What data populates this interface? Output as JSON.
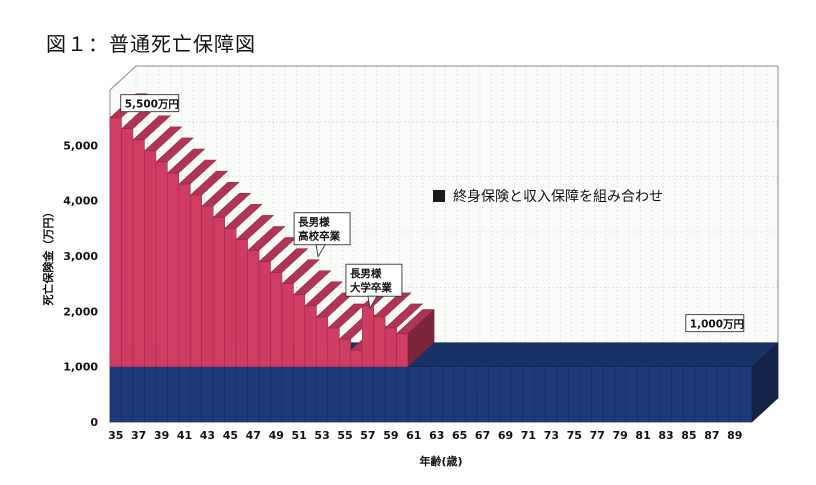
{
  "chart_data": {
    "type": "area",
    "title": "図１：普通死亡保障図",
    "xlabel": "年齢(歳)",
    "ylabel": "死亡保険金（万円）",
    "ylim": [
      0,
      6000
    ],
    "y_ticks": [
      "0",
      "1,000",
      "2,000",
      "3,000",
      "4,000",
      "5,000"
    ],
    "x_ticks": [
      "35",
      "37",
      "39",
      "41",
      "43",
      "45",
      "47",
      "49",
      "51",
      "53",
      "55",
      "57",
      "59",
      "61",
      "63",
      "65",
      "67",
      "69",
      "71",
      "73",
      "75",
      "77",
      "79",
      "81",
      "83",
      "85",
      "87",
      "89"
    ],
    "x": [
      35,
      36,
      37,
      38,
      39,
      40,
      41,
      42,
      43,
      44,
      45,
      46,
      47,
      48,
      49,
      50,
      51,
      52,
      53,
      54,
      55,
      56,
      57,
      58,
      59,
      60,
      61,
      62,
      63,
      64,
      65,
      66,
      67,
      68,
      69,
      70,
      71,
      72,
      73,
      74,
      75,
      76,
      77,
      78,
      79,
      80,
      81,
      82,
      83,
      84,
      85,
      86,
      87,
      88,
      89,
      90
    ],
    "series": [
      {
        "color": "#1f3a78",
        "values": [
          1000,
          1000,
          1000,
          1000,
          1000,
          1000,
          1000,
          1000,
          1000,
          1000,
          1000,
          1000,
          1000,
          1000,
          1000,
          1000,
          1000,
          1000,
          1000,
          1000,
          1000,
          1000,
          1000,
          1000,
          1000,
          1000,
          1000,
          1000,
          1000,
          1000,
          1000,
          1000,
          1000,
          1000,
          1000,
          1000,
          1000,
          1000,
          1000,
          1000,
          1000,
          1000,
          1000,
          1000,
          1000,
          1000,
          1000,
          1000,
          1000,
          1000,
          1000,
          1000,
          1000,
          1000,
          1000,
          1000
        ]
      },
      {
        "color": "#cf3d63",
        "values": [
          4500,
          4300,
          4100,
          3900,
          3700,
          3500,
          3300,
          3100,
          2900,
          2700,
          2500,
          2300,
          2100,
          1900,
          1700,
          1500,
          1300,
          1100,
          900,
          700,
          500,
          300,
          1100,
          900,
          700,
          600,
          0,
          0,
          0,
          0,
          0,
          0,
          0,
          0,
          0,
          0,
          0,
          0,
          0,
          0,
          0,
          0,
          0,
          0,
          0,
          0,
          0,
          0,
          0,
          0,
          0,
          0,
          0,
          0,
          0,
          0
        ]
      }
    ],
    "legend": {
      "text": "終身保険と収入保障を組み合わせ",
      "placement": "center-right"
    },
    "annotations": [
      {
        "lines": [
          "5,500万円"
        ],
        "x": 35,
        "y": 5500
      },
      {
        "lines": [
          "長男様",
          "高校卒業"
        ],
        "x": 53,
        "y": 2300
      },
      {
        "lines": [
          "長男様",
          "大学卒業"
        ],
        "x": 57,
        "y": 1550
      },
      {
        "lines": [
          "1,000万円"
        ],
        "x": 89,
        "y": 1000
      }
    ],
    "grid": true
  }
}
